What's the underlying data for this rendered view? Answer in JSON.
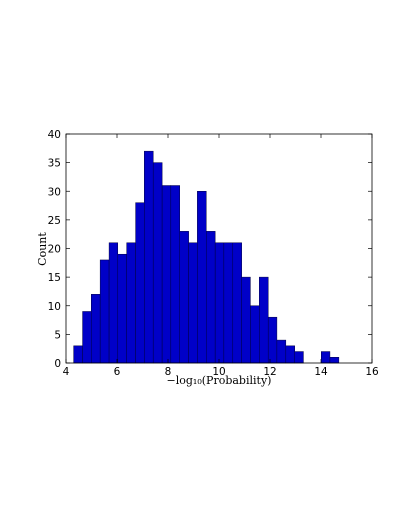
{
  "chart_data": {
    "type": "histogram",
    "x_label": "−log₁₀(Probability)",
    "y_label": "Count",
    "bins": [
      4.3,
      4.65,
      4.99,
      5.34,
      5.69,
      6.03,
      6.38,
      6.73,
      7.07,
      7.42,
      7.77,
      8.11,
      8.46,
      8.81,
      9.15,
      9.5,
      9.85,
      10.19,
      10.54,
      10.89,
      11.23,
      11.58,
      11.93,
      12.27,
      12.62,
      12.97,
      13.31,
      13.66,
      14.01,
      14.35,
      14.7
    ],
    "values": [
      3,
      9,
      12,
      18,
      21,
      19,
      21,
      28,
      37,
      35,
      31,
      31,
      23,
      21,
      30,
      23,
      21,
      21,
      21,
      15,
      10,
      15,
      8,
      4,
      3,
      2,
      0,
      0,
      2,
      1
    ],
    "color": "#0000c8",
    "edgecolor": "#000040",
    "xlim": [
      4,
      16
    ],
    "xticks": [
      4,
      6,
      8,
      10,
      12,
      14,
      16
    ],
    "ylim": [
      0,
      40
    ],
    "yticks": [
      0,
      5,
      10,
      15,
      20,
      25,
      30,
      35,
      40
    ]
  }
}
